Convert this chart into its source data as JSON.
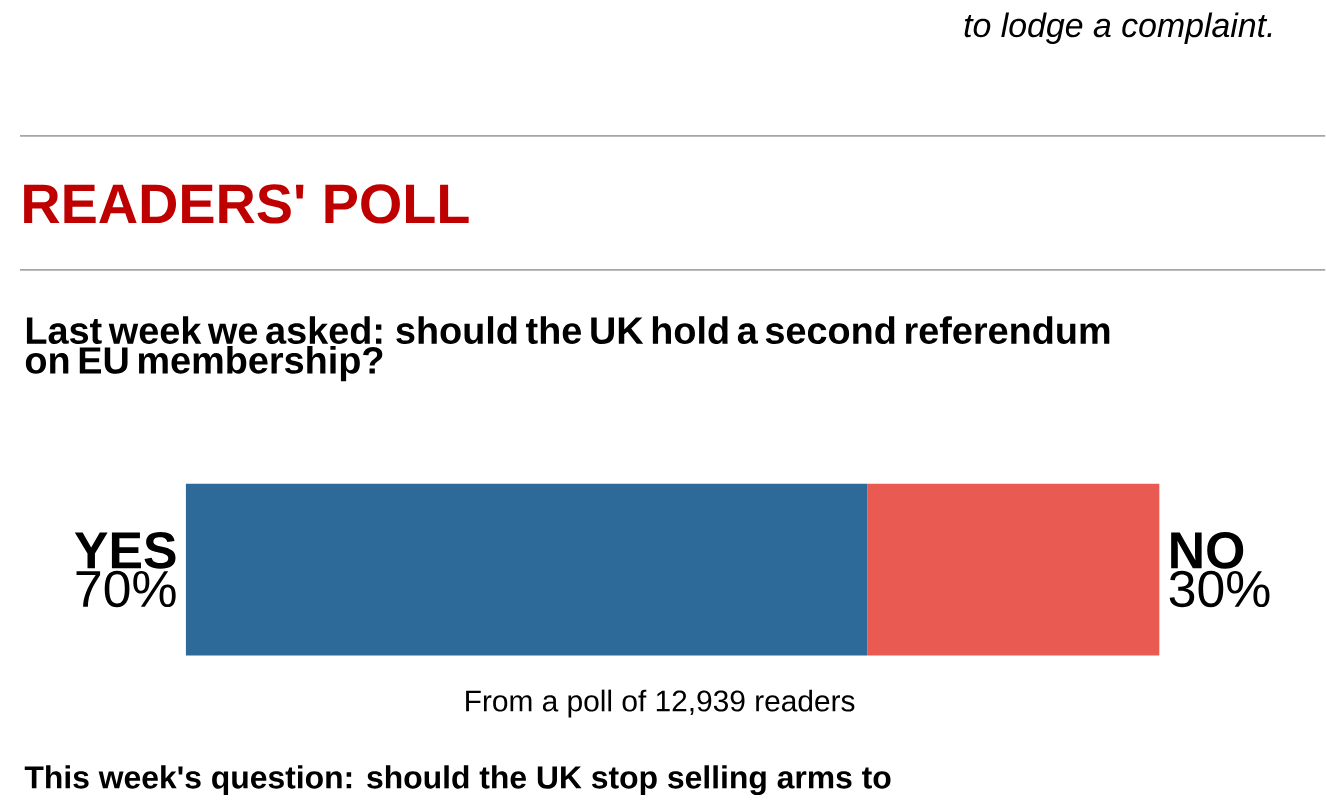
{
  "chart_data": {
    "type": "bar",
    "orientation": "horizontal",
    "stacked": true,
    "title": "READERS' POLL",
    "subtitle": "Last week we asked: should the UK hold a second referendum on EU membership?",
    "categories": [
      null
    ],
    "xlim": [
      0,
      100
    ],
    "series": [
      {
        "name": "YES",
        "color": "#2d6a9a",
        "values": [
          70
        ],
        "value_labels": [
          "70%"
        ]
      },
      {
        "name": "NO",
        "color": "#e85a52",
        "values": [
          30
        ],
        "value_labels": [
          "30%"
        ]
      }
    ],
    "annotations": [
      "to lodge a complaint.",
      "From a poll of 12,939 readers",
      "This week's question: should the UK stop selling arms to"
    ]
  }
}
